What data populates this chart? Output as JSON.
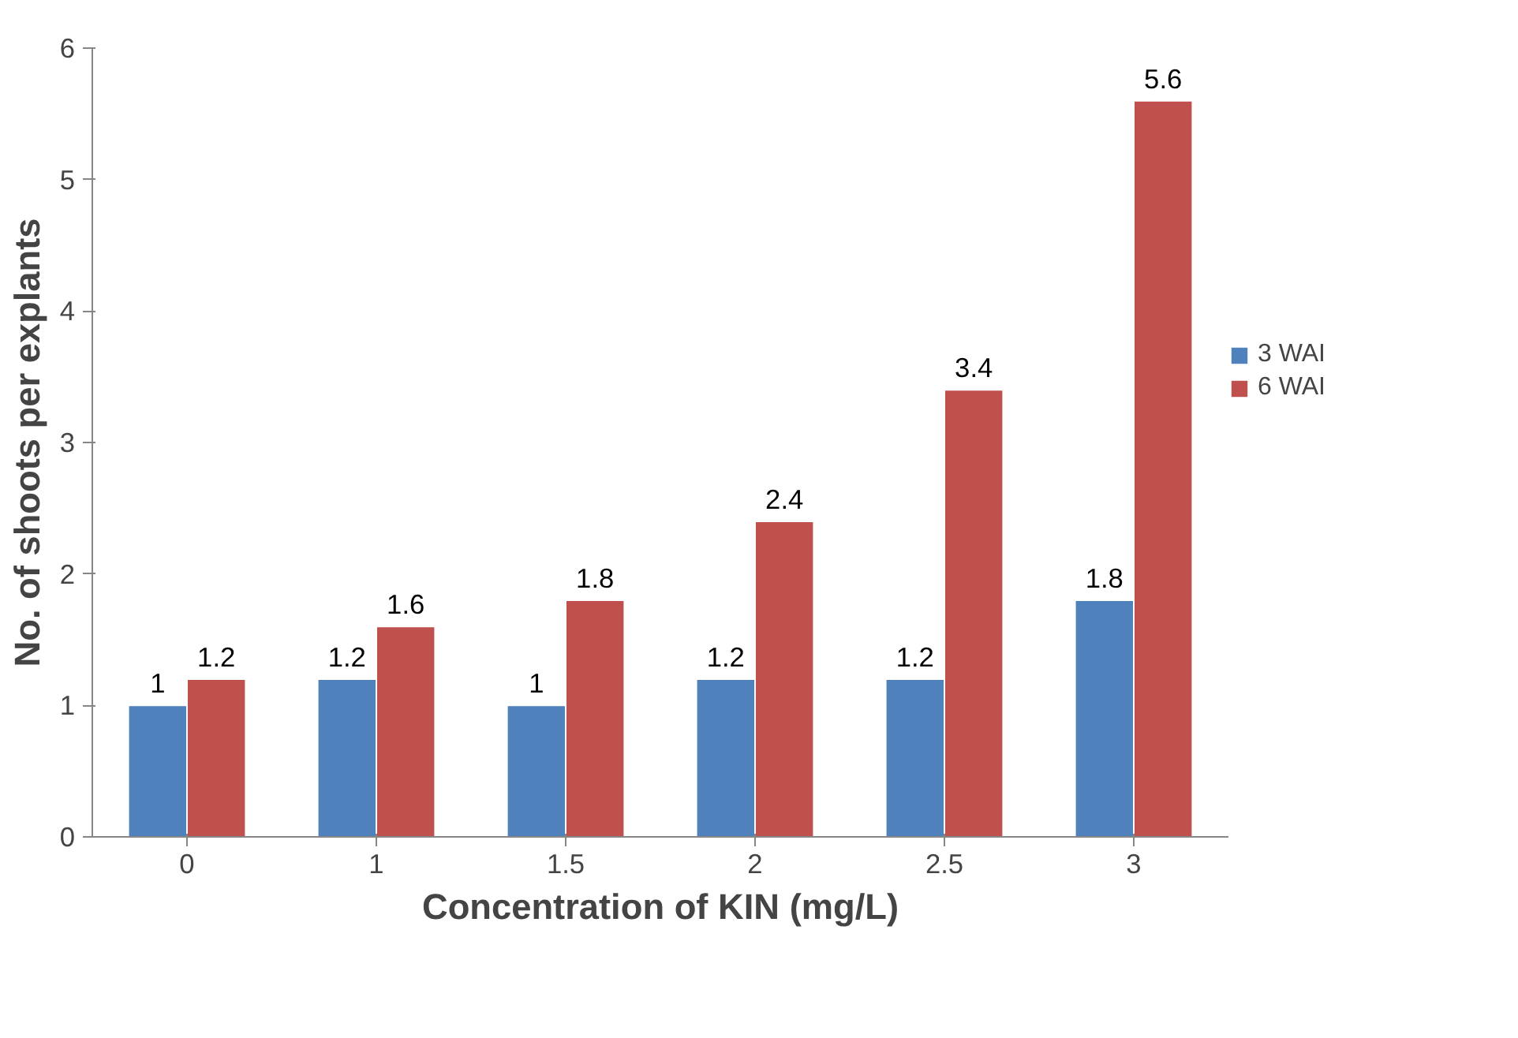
{
  "chart_data": {
    "type": "bar",
    "xlabel": "Concentration of KIN (mg/L)",
    "ylabel": "No. of shoots per explants",
    "categories": [
      "0",
      "1",
      "1.5",
      "2",
      "2.5",
      "3"
    ],
    "series": [
      {
        "name": "3 WAI",
        "color": "#4f81bd",
        "values": [
          1,
          1.2,
          1,
          1.2,
          1.2,
          1.8
        ]
      },
      {
        "name": "6 WAI",
        "color": "#c0504d",
        "values": [
          1.2,
          1.6,
          1.8,
          2.4,
          3.4,
          5.6
        ]
      }
    ],
    "ylim": [
      0,
      6
    ],
    "yticks": [
      0,
      1,
      2,
      3,
      4,
      5,
      6
    ],
    "grid": false,
    "legend": "right",
    "data_labels": true
  }
}
